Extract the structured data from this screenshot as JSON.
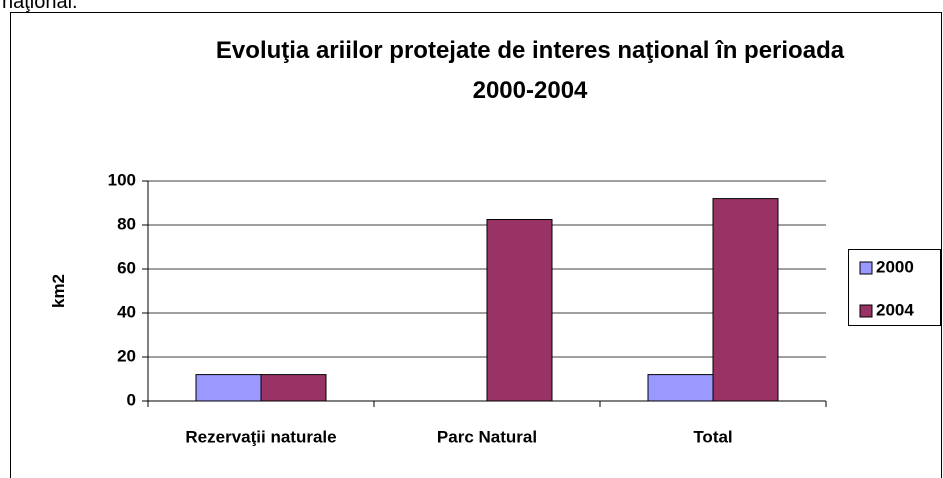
{
  "intro_text": "naţional.",
  "chart_data": {
    "type": "bar",
    "title": [
      "Evoluţia ariilor protejate de interes naţional în perioada",
      "2000-2004"
    ],
    "y_label": "km2",
    "categories": [
      "Rezervaţii naturale",
      "Parc Natural",
      "Total"
    ],
    "series": [
      {
        "name": "2000",
        "color": "#9999ff",
        "values": [
          12,
          0,
          12
        ]
      },
      {
        "name": "2004",
        "color": "#993366",
        "values": [
          12,
          82.5,
          92
        ]
      }
    ],
    "ylim": [
      0,
      100
    ],
    "yticks": [
      0,
      20,
      40,
      60,
      80,
      100
    ],
    "grid": true,
    "legend": "right"
  }
}
